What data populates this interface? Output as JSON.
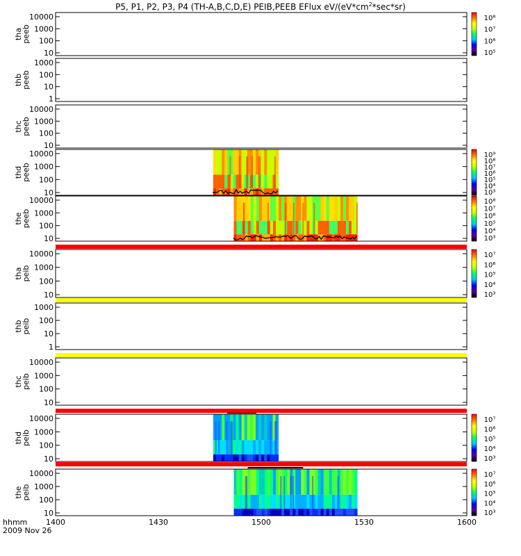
{
  "title": "P5, P1, P2, P3, P4 (TH-A,B,C,D,E) PEIB,PEEB EFlux eV/(eV*cm",
  "title_sup": "2",
  "title_tail": "*sec*sr)",
  "time_axis": {
    "label": "hhmm",
    "date": "2009 Nov 26",
    "ticks": [
      "1400",
      "1430",
      "1500",
      "1530",
      "1600"
    ]
  },
  "colors": {
    "bar_red": "#ff0000",
    "bar_yellow": "#ffff00",
    "colormap": [
      "#000000",
      "#5a00a0",
      "#0000ff",
      "#00c8ff",
      "#00ff64",
      "#c8ff00",
      "#ffff00",
      "#ff7800",
      "#ff0000"
    ]
  },
  "chart_data": [
    {
      "type": "heatmap",
      "id": "tha_peeb",
      "ylabel": [
        "tha",
        "peeb"
      ],
      "yticks": [
        "10000",
        "1000",
        "100",
        "10"
      ],
      "colorbar": [
        "10⁸",
        "10⁷",
        "10⁶",
        "10⁵"
      ],
      "data_intervals": []
    },
    {
      "type": "heatmap",
      "id": "thb_peeb",
      "ylabel": [
        "thb",
        "peeb"
      ],
      "yticks": [
        "1000",
        "100",
        "10",
        "1"
      ],
      "colorbar": [],
      "data_intervals": []
    },
    {
      "type": "heatmap",
      "id": "thc_peeb",
      "ylabel": [
        "thc",
        "peeb"
      ],
      "yticks": [
        "10000",
        "1000",
        "100",
        "10"
      ],
      "colorbar": [],
      "data_intervals": []
    },
    {
      "type": "heatmap",
      "id": "thd_peeb",
      "ylabel": [
        "thd",
        "peeb"
      ],
      "yticks": [
        "10000",
        "1000",
        "100",
        "10"
      ],
      "colorbar": [
        "10⁹",
        "10⁸",
        "10⁷",
        "10⁶",
        "10⁵",
        "10⁴",
        "10³"
      ],
      "data_intervals": [
        [
          "1446",
          "1505"
        ]
      ]
    },
    {
      "type": "heatmap",
      "id": "the_peeb",
      "ylabel": [
        "the",
        "peeb"
      ],
      "yticks": [
        "10000",
        "1000",
        "100",
        "10"
      ],
      "colorbar": [
        "10⁸",
        "10⁷",
        "10⁶",
        "10⁵",
        "10⁴",
        "10³"
      ],
      "data_intervals": [
        [
          "1452",
          "1528"
        ]
      ],
      "status_bar": "red"
    },
    {
      "type": "heatmap",
      "id": "tha_peib",
      "ylabel": [
        "tha",
        "peib"
      ],
      "yticks": [
        "10000",
        "1000",
        "100",
        "10"
      ],
      "colorbar": [
        "10⁷",
        "10⁶",
        "10⁵",
        "10⁴",
        "10³"
      ],
      "data_intervals": [],
      "status_bar": "yellow"
    },
    {
      "type": "heatmap",
      "id": "thb_peib",
      "ylabel": [
        "thb",
        "peib"
      ],
      "yticks": [
        "1000",
        "100",
        "10",
        "1"
      ],
      "colorbar": [],
      "data_intervals": [],
      "status_bar": "yellow"
    },
    {
      "type": "heatmap",
      "id": "thc_peib",
      "ylabel": [
        "thc",
        "peib"
      ],
      "yticks": [
        "10000",
        "1000",
        "100",
        "10"
      ],
      "colorbar": [],
      "data_intervals": [],
      "status_bar": "red"
    },
    {
      "type": "heatmap",
      "id": "thd_peib",
      "ylabel": [
        "thd",
        "peib"
      ],
      "yticks": [
        "10000",
        "1000",
        "100",
        "10"
      ],
      "colorbar": [
        "10⁷",
        "10⁶",
        "10⁵",
        "10⁴",
        "10³"
      ],
      "data_intervals": [
        [
          "1446",
          "1505"
        ]
      ],
      "status_bar": "red"
    },
    {
      "type": "heatmap",
      "id": "the_peib",
      "ylabel": [
        "the",
        "peib"
      ],
      "yticks": [
        "10000",
        "1000",
        "100",
        "10"
      ],
      "colorbar": [
        "10⁷",
        "10⁶",
        "10⁵",
        "10⁴",
        "10³"
      ],
      "data_intervals": [
        [
          "1452",
          "1528"
        ]
      ]
    }
  ]
}
